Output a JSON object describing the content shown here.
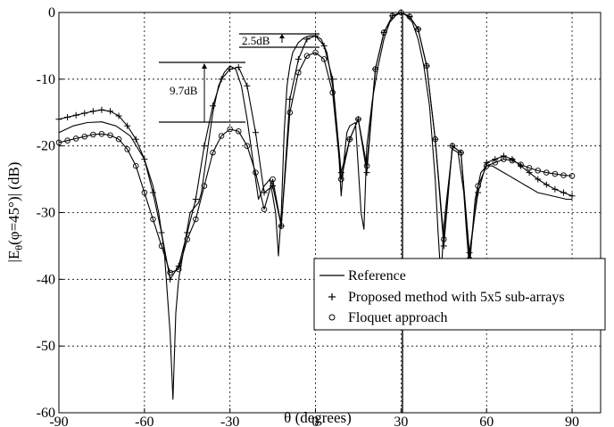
{
  "chart_data": {
    "type": "line",
    "title": "",
    "xlabel": "θ (degrees)",
    "ylabel": "|E",
    "ylabel_sub": "θ",
    "ylabel_rest": "(φ=45°)| (dB)",
    "xlim": [
      -90,
      100
    ],
    "ylim": [
      -60,
      0
    ],
    "xticks": [
      -90,
      -60,
      -30,
      0,
      30,
      60,
      90
    ],
    "xtick_labels": [
      "-90",
      "-60",
      "-30",
      "0",
      "30",
      "60",
      "90"
    ],
    "yticks": [
      0,
      -10,
      -20,
      -30,
      -40,
      -50,
      -60
    ],
    "ytick_labels": [
      "0",
      "-10",
      "-20",
      "-30",
      "-40",
      "-50",
      "-60"
    ],
    "grid": true,
    "legend_position": "bottom-right",
    "series": [
      {
        "name": "Reference",
        "marker": "none",
        "x": [
          -90,
          -85,
          -80,
          -75,
          -70,
          -65,
          -60,
          -57,
          -55,
          -53,
          -52,
          -51,
          -50,
          -49,
          -48,
          -46,
          -44,
          -43,
          -42,
          -41,
          -40,
          -38,
          -36,
          -34,
          -32,
          -30,
          -28,
          -26,
          -24,
          -22,
          -20,
          -18,
          -16,
          -14,
          -13,
          -12,
          -11,
          -10,
          -9,
          -8,
          -6,
          -4,
          -2,
          0,
          2,
          4,
          6,
          8,
          9,
          10,
          11,
          12,
          14,
          16,
          17,
          18,
          20,
          22,
          24,
          26,
          28,
          30,
          32,
          34,
          36,
          38,
          40,
          42,
          43,
          44,
          45,
          46,
          48,
          50,
          52,
          53,
          54,
          55,
          56,
          58,
          60,
          62,
          64,
          66,
          68,
          70,
          72,
          74,
          76,
          78,
          80,
          82,
          84,
          86,
          88,
          90
        ],
        "y": [
          -18,
          -17,
          -16.5,
          -16.4,
          -17,
          -18.5,
          -22,
          -26,
          -30,
          -36,
          -42,
          -48,
          -58,
          -45,
          -40,
          -35,
          -30,
          -29.5,
          -29,
          -28.5,
          -27,
          -21,
          -15,
          -11,
          -9,
          -8,
          -8.5,
          -11,
          -16,
          -22,
          -28,
          -26,
          -25,
          -30,
          -36.5,
          -30,
          -18,
          -11,
          -8,
          -6,
          -4.5,
          -3.8,
          -3.5,
          -3.5,
          -4,
          -6,
          -11,
          -20,
          -27.5,
          -22,
          -18,
          -17,
          -16.5,
          -30,
          -32.5,
          -20,
          -13,
          -8,
          -4,
          -1.5,
          -0.5,
          0,
          -0.5,
          -1.5,
          -4,
          -8,
          -14,
          -25,
          -33,
          -40,
          -32,
          -28,
          -20.5,
          -21,
          -27,
          -33,
          -38.5,
          -33,
          -28,
          -24,
          -23,
          -23,
          -23.5,
          -24,
          -24.5,
          -25,
          -25.5,
          -26,
          -26.5,
          -27,
          -27.2,
          -27.4,
          -27.6,
          -27.8,
          -28,
          -28
        ]
      },
      {
        "name": "Proposed method with 5x5 sub-arrays",
        "marker": "plus",
        "x": [
          -90,
          -87,
          -84,
          -81,
          -78,
          -75,
          -72,
          -69,
          -66,
          -63,
          -60,
          -57,
          -54,
          -51,
          -48,
          -45,
          -42,
          -39,
          -36,
          -33,
          -30,
          -27,
          -24,
          -21,
          -18,
          -15,
          -12,
          -9,
          -6,
          -3,
          0,
          3,
          6,
          9,
          12,
          15,
          18,
          21,
          24,
          27,
          30,
          33,
          36,
          39,
          42,
          45,
          48,
          51,
          54,
          57,
          60,
          63,
          66,
          69,
          72,
          75,
          78,
          81,
          84,
          87,
          90
        ],
        "y": [
          -16,
          -15.7,
          -15.4,
          -15.1,
          -14.8,
          -14.6,
          -14.8,
          -15.5,
          -17,
          -19,
          -22,
          -27,
          -33,
          -40,
          -38,
          -33,
          -28,
          -20,
          -14,
          -10,
          -8.5,
          -8.2,
          -11,
          -18,
          -27,
          -26,
          -32,
          -13,
          -7,
          -4,
          -3.5,
          -5,
          -10,
          -24,
          -19,
          -16,
          -24,
          -8.5,
          -3,
          -0.5,
          0,
          -0.6,
          -2.5,
          -8,
          -19,
          -35,
          -20,
          -21,
          -36,
          -27,
          -22.5,
          -22,
          -21.5,
          -22,
          -23,
          -24,
          -25,
          -25.8,
          -26.5,
          -27,
          -27.5
        ]
      },
      {
        "name": "Floquet approach",
        "marker": "circle",
        "x": [
          -90,
          -87,
          -84,
          -81,
          -78,
          -75,
          -72,
          -69,
          -66,
          -63,
          -60,
          -57,
          -54,
          -51,
          -48,
          -45,
          -42,
          -39,
          -36,
          -33,
          -30,
          -27,
          -24,
          -21,
          -18,
          -15,
          -12,
          -9,
          -6,
          -3,
          0,
          3,
          6,
          9,
          12,
          15,
          18,
          21,
          24,
          27,
          30,
          33,
          36,
          39,
          42,
          45,
          48,
          51,
          54,
          57,
          60,
          63,
          66,
          69,
          72,
          75,
          78,
          81,
          84,
          87,
          90
        ],
        "y": [
          -19.5,
          -19.2,
          -18.9,
          -18.6,
          -18.3,
          -18.2,
          -18.4,
          -19,
          -20.5,
          -23,
          -27,
          -31,
          -35,
          -39,
          -38.5,
          -34,
          -31,
          -26,
          -21,
          -18.5,
          -17.5,
          -17.8,
          -20,
          -24,
          -29.5,
          -25,
          -32,
          -15,
          -9,
          -6.5,
          -6,
          -7,
          -12,
          -25,
          -19,
          -16,
          -23,
          -8.5,
          -3,
          -0.5,
          0,
          -0.6,
          -2.5,
          -8,
          -19,
          -34,
          -20,
          -21,
          -37,
          -26,
          -23,
          -22.5,
          -22,
          -22.2,
          -22.8,
          -23.3,
          -23.7,
          -24,
          -24.2,
          -24.4,
          -24.5
        ]
      }
    ],
    "annotations": [
      {
        "text": "2.5dB",
        "value_db": 2.5
      },
      {
        "text": "9.7dB",
        "value_db": 9.7
      }
    ],
    "vertical_marker_x": 30
  }
}
